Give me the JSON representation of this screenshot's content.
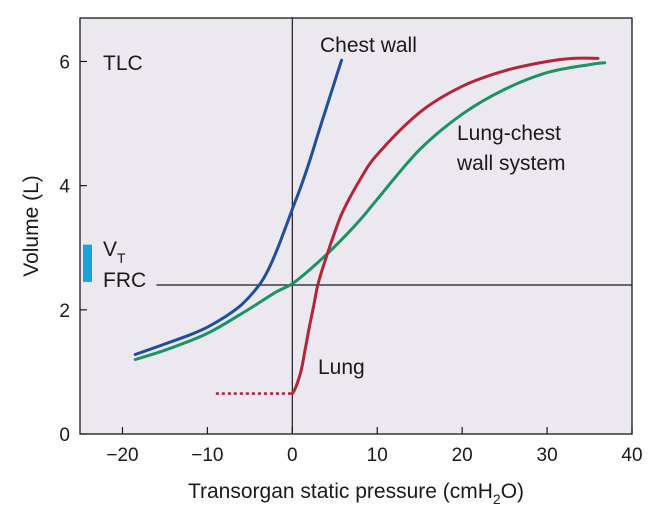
{
  "chart_data": {
    "type": "line",
    "title": "",
    "xlabel": "Transorgan static pressure (cmH",
    "xlabel_sub": "2",
    "xlabel_end": "O)",
    "ylabel": "Volume (L)",
    "xlim": [
      -25,
      40
    ],
    "ylim": [
      0,
      6.7
    ],
    "x_ticks": [
      -20,
      -10,
      0,
      10,
      20,
      30,
      40
    ],
    "x_tick_labels": [
      "−20",
      "−10",
      "0",
      "10",
      "20",
      "30",
      "40"
    ],
    "y_ticks": [
      0,
      2,
      4,
      6
    ],
    "y_tick_labels": [
      "0",
      "2",
      "4",
      "6"
    ],
    "grid": false,
    "background_color": "#ece8f0",
    "frc_volume": 2.4,
    "frc_line_x_start": -16,
    "series": [
      {
        "name": "Chest wall",
        "color": "#1f4e9c",
        "x": [
          -18.5,
          -15,
          -12,
          -10,
          -8,
          -6,
          -4,
          -3,
          -2,
          -1,
          0,
          1,
          2,
          3,
          4,
          5,
          5.8
        ],
        "y": [
          1.28,
          1.45,
          1.6,
          1.72,
          1.88,
          2.08,
          2.38,
          2.6,
          2.9,
          3.25,
          3.62,
          3.98,
          4.38,
          4.82,
          5.25,
          5.68,
          6.02
        ]
      },
      {
        "name": "Lung-chest wall system",
        "color": "#1a9460",
        "x": [
          -18.5,
          -15,
          -10,
          -5,
          -2,
          0,
          2,
          5,
          8,
          10,
          15,
          20,
          25,
          30,
          35,
          36.8
        ],
        "y": [
          1.2,
          1.35,
          1.62,
          2.02,
          2.28,
          2.42,
          2.64,
          3.02,
          3.45,
          3.78,
          4.58,
          5.15,
          5.55,
          5.82,
          5.95,
          5.98
        ]
      },
      {
        "name": "Lung",
        "color": "#b3253a",
        "x": [
          0,
          0.4,
          1,
          1.5,
          2,
          2.5,
          3,
          4,
          5,
          6,
          8,
          10,
          15,
          20,
          25,
          30,
          33,
          36
        ],
        "y": [
          0.65,
          0.75,
          1.0,
          1.35,
          1.72,
          2.05,
          2.4,
          2.85,
          3.25,
          3.6,
          4.1,
          4.5,
          5.18,
          5.6,
          5.85,
          6.0,
          6.05,
          6.05
        ]
      },
      {
        "name": "Lung (collapsed)",
        "color": "#b3253a",
        "dashed": true,
        "x": [
          -9,
          0
        ],
        "y": [
          0.65,
          0.65
        ]
      }
    ],
    "annotations": {
      "tlc": "TLC",
      "chest_wall": "Chest wall",
      "system_line1": "Lung-chest",
      "system_line2": "wall system",
      "lung": "Lung",
      "vt_main": "V",
      "vt_sub": "T",
      "frc": "FRC"
    },
    "vt_range": [
      2.45,
      3.05
    ],
    "vt_color": "#1aa3d6"
  }
}
